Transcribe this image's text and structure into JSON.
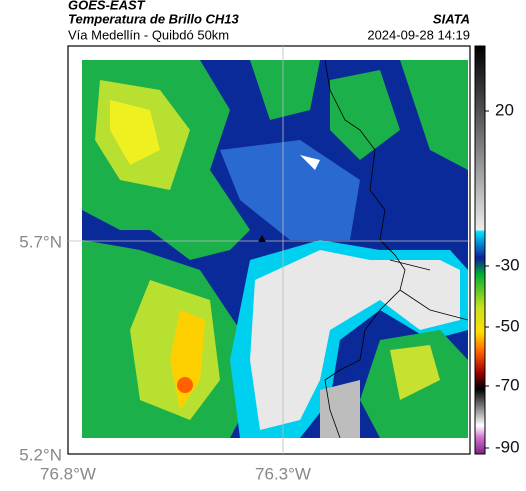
{
  "header": {
    "source": "GOES-EAST",
    "title": "Temperatura de Brillo CH13",
    "agency": "SIATA",
    "subtitle": "Vía Medellín - Quibdó 50km",
    "datetime": "2024-09-28 14:19"
  },
  "axes": {
    "lat_labels": [
      "5.7°N",
      "5.2°N"
    ],
    "lon_labels": [
      "76.8°W",
      "76.3°W"
    ]
  },
  "colorbar": {
    "labels": [
      "20",
      "-30",
      "-50",
      "-70",
      "-90"
    ]
  }
}
